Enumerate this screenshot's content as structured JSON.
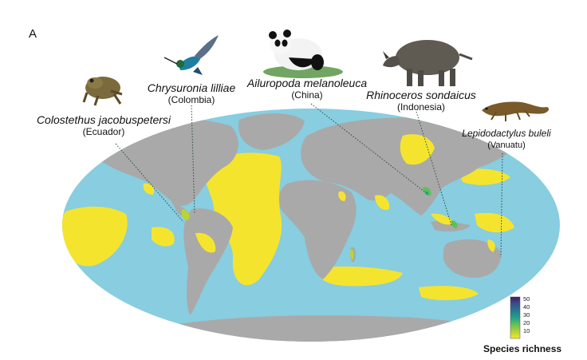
{
  "panel_label": "A",
  "species": [
    {
      "name": "Colostethus jacobuspetersi",
      "country": "(Ecuador)",
      "animal_icon": "frog-icon"
    },
    {
      "name": "Chrysuronia lilliae",
      "country": "(Colombia)",
      "animal_icon": "hummingbird-icon"
    },
    {
      "name": "Ailuropoda melanoleuca",
      "country": "(China)",
      "animal_icon": "panda-icon"
    },
    {
      "name": "Rhinoceros sondaicus",
      "country": "(Indonesia)",
      "animal_icon": "rhinoceros-icon"
    },
    {
      "name": "Lepidodactylus buleli",
      "country": "(Vanuatu)",
      "animal_icon": "gecko-icon"
    }
  ],
  "legend": {
    "title": "Species richness",
    "ticks": [
      "50",
      "40",
      "30",
      "20",
      "10"
    ],
    "colors": [
      "#fbe62c",
      "#b8d437",
      "#5dbf59",
      "#21a08a",
      "#2b748e",
      "#3b4a8a",
      "#431b5e"
    ]
  },
  "colors": {
    "ocean": "#88cde0",
    "land": "#a9a9a9",
    "low_richness": "#f5e42e",
    "leader_line": "#2f4a40"
  }
}
